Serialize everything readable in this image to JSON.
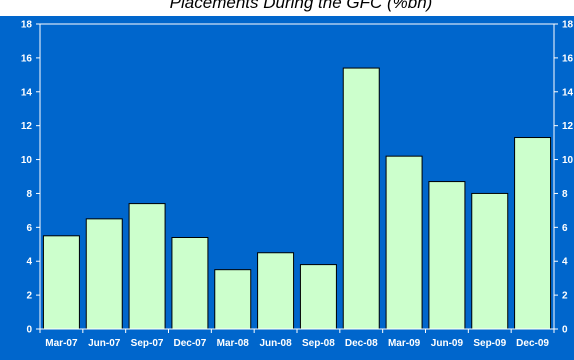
{
  "chart_data": {
    "type": "bar",
    "title": "Placements During the GFC (%bn)",
    "categories": [
      "Mar-07",
      "Jun-07",
      "Sep-07",
      "Dec-07",
      "Mar-08",
      "Jun-08",
      "Sep-08",
      "Dec-08",
      "Mar-09",
      "Jun-09",
      "Sep-09",
      "Dec-09"
    ],
    "values": [
      5.5,
      6.5,
      7.4,
      5.4,
      3.5,
      4.5,
      3.8,
      15.4,
      10.2,
      8.7,
      8.0,
      11.3
    ],
    "ylim": [
      0,
      18
    ],
    "yticks": [
      0,
      2,
      4,
      6,
      8,
      10,
      12,
      14,
      16,
      18
    ],
    "xlabel": "",
    "ylabel": "",
    "grid": false,
    "dual_y_axis": true,
    "colors": {
      "plot_background": "#0066cc",
      "bar_fill": "#ccffcc",
      "bar_stroke": "#000000",
      "text": "#ffffff"
    }
  }
}
